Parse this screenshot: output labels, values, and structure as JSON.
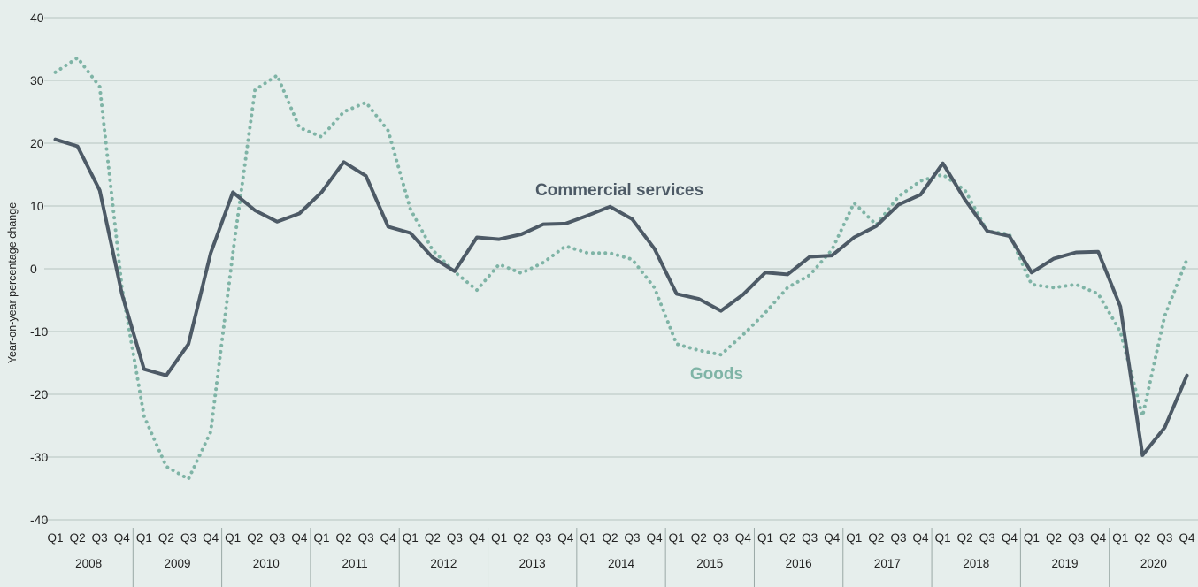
{
  "chart_data": {
    "type": "line",
    "ylabel": "Year-on-year percentage change",
    "ylim": [
      -40,
      40
    ],
    "yticks": [
      40,
      30,
      20,
      10,
      0,
      -10,
      -20,
      -30,
      -40
    ],
    "years": [
      "2008",
      "2009",
      "2010",
      "2011",
      "2012",
      "2013",
      "2014",
      "2015",
      "2016",
      "2017",
      "2018",
      "2019",
      "2020"
    ],
    "quarters": [
      "Q1",
      "Q2",
      "Q3",
      "Q4"
    ],
    "grid": true,
    "series": [
      {
        "name": "Commercial services",
        "color": "#4d5a66",
        "style": "solid",
        "values": [
          20.6,
          19.5,
          12.5,
          -4,
          -16,
          -17,
          -12,
          2.5,
          12.2,
          9.3,
          7.5,
          8.8,
          12.2,
          17.0,
          14.8,
          6.7,
          5.7,
          1.8,
          -0.4,
          5.0,
          4.7,
          5.5,
          7.1,
          7.2,
          8.5,
          9.9,
          7.9,
          3.2,
          -4.0,
          -4.8,
          -6.7,
          -4.1,
          -0.6,
          -0.9,
          1.9,
          2.1,
          5.0,
          6.8,
          10.2,
          11.8,
          16.8,
          11.0,
          6.0,
          5.2,
          -0.6,
          1.6,
          2.6,
          2.7,
          -6.0,
          -29.7,
          -25.3,
          -17.0
        ]
      },
      {
        "name": "Goods",
        "color": "#7fb4a6",
        "style": "dotted",
        "values": [
          31.3,
          33.6,
          29.0,
          -3.0,
          -23.5,
          -31.5,
          -33.5,
          -26.0,
          2.5,
          28.5,
          30.8,
          22.5,
          21.0,
          25.0,
          26.5,
          22.0,
          9.5,
          3.0,
          -0.5,
          -3.4,
          0.7,
          -0.7,
          1.0,
          3.6,
          2.5,
          2.5,
          1.5,
          -3.0,
          -12.0,
          -13.0,
          -13.7,
          -10.5,
          -7.0,
          -3.0,
          -1.0,
          3.0,
          10.5,
          7.0,
          11.5,
          14.0,
          15.0,
          12.5,
          6.0,
          5.5,
          -2.5,
          -3.0,
          -2.5,
          -4.0,
          -10.0,
          -23.5,
          -7.5,
          1.5
        ]
      }
    ]
  }
}
